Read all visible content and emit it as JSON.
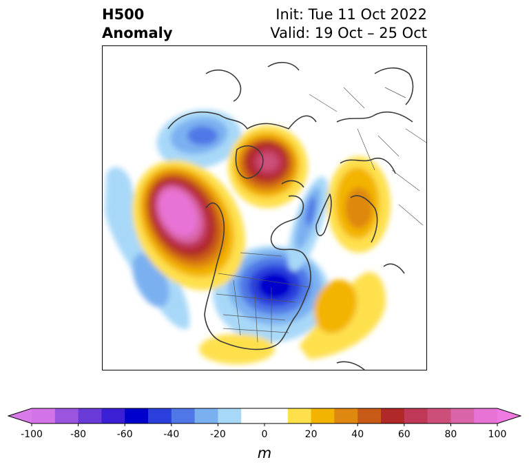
{
  "title": {
    "line1": "H500",
    "line2": "Anomaly",
    "init": "Init: Tue 11 Oct 2022",
    "valid": "Valid: 19 Oct – 25 Oct"
  },
  "colorbar": {
    "units": "m",
    "ticks": [
      "-100",
      "-80",
      "-60",
      "-40",
      "-20",
      "0",
      "20",
      "40",
      "60",
      "80",
      "100"
    ],
    "tick_values": [
      -100,
      -80,
      -60,
      -40,
      -20,
      0,
      20,
      40,
      60,
      80,
      100
    ],
    "min": -100,
    "max": 100,
    "step": 10,
    "extend": "both",
    "colors": [
      "#d273e8",
      "#9b55e0",
      "#6a3ad8",
      "#3a1fd4",
      "#0000cc",
      "#2a3fdc",
      "#4f78e6",
      "#7ab0f0",
      "#a8d8f8",
      "#ffffff",
      "#ffffff",
      "#fee04d",
      "#f3b400",
      "#de8810",
      "#c85a18",
      "#b02828",
      "#c03858",
      "#cc4f7a",
      "#d865a8",
      "#e873d6"
    ],
    "under_color": "#d87ae8",
    "over_color": "#ee7ae2"
  }
}
